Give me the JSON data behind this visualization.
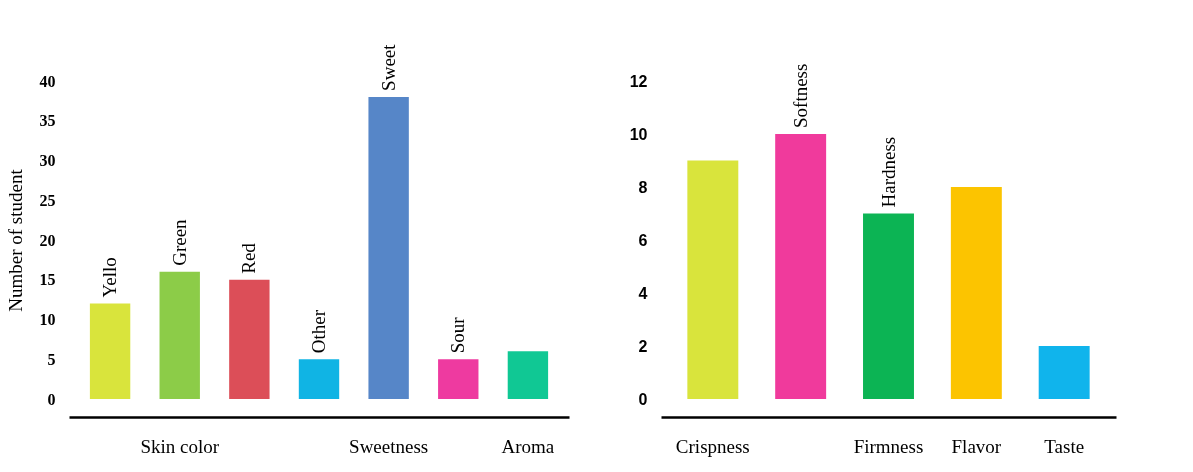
{
  "chart_data": [
    {
      "type": "bar",
      "ylabel": "Number of student",
      "categories": [
        null,
        "Skin color",
        null,
        null,
        "Sweetness",
        null,
        "Aroma"
      ],
      "values": [
        12,
        16,
        15,
        5,
        38,
        5,
        6
      ],
      "value_labels": [
        "Yello",
        "Green",
        "Red",
        "Other",
        "Sweet",
        "Sour",
        null
      ],
      "colors": [
        "#d9e43c",
        "#8ccc48",
        "#dc4e58",
        "#10b4e4",
        "#5686c8",
        "#ee3aa0",
        "#10c894"
      ],
      "ylim": [
        0,
        40
      ],
      "yticks": [
        0,
        5,
        10,
        15,
        20,
        25,
        30,
        35,
        40
      ],
      "grid": false
    },
    {
      "type": "bar",
      "categories": [
        "Crispness",
        null,
        "Firmness",
        "Flavor",
        "Taste"
      ],
      "values": [
        9,
        10,
        7,
        8,
        2
      ],
      "value_labels": [
        null,
        "Softness",
        "Hardness",
        null,
        null
      ],
      "colors": [
        "#d9e43c",
        "#f03a9c",
        "#0cb454",
        "#fcc400",
        "#10b4ec"
      ],
      "ylim": [
        0,
        12
      ],
      "yticks": [
        0,
        2,
        4,
        6,
        8,
        10,
        12
      ],
      "grid": false
    }
  ]
}
